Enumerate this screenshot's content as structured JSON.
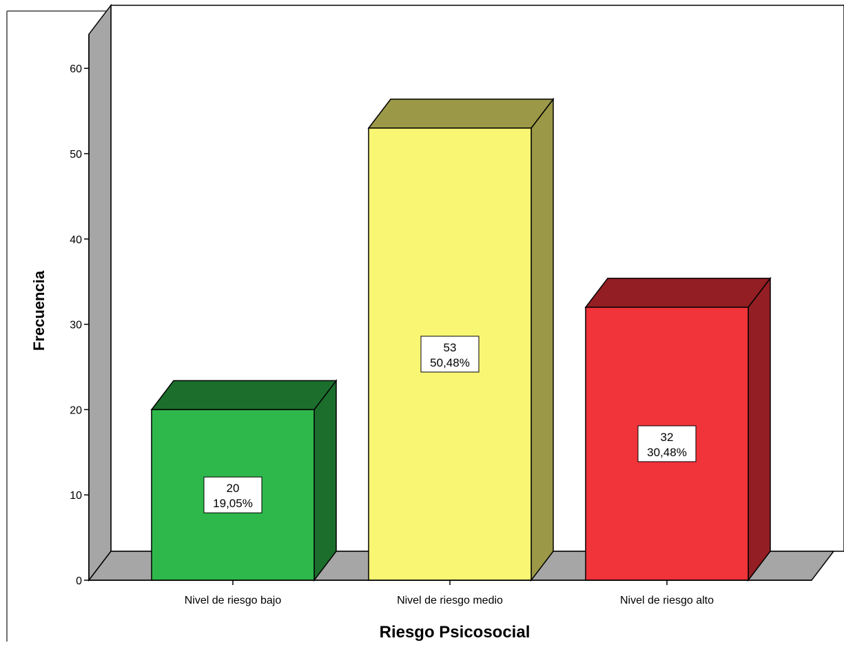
{
  "chart_data": {
    "type": "bar",
    "style": "3d",
    "categories": [
      "Nivel de riesgo bajo",
      "Nivel de riesgo medio",
      "Nivel de riesgo alto"
    ],
    "values": [
      20,
      53,
      32
    ],
    "percent_labels": [
      "19,05%",
      "50,48%",
      "30,48%"
    ],
    "count_labels": [
      "20",
      "53",
      "32"
    ],
    "colors": {
      "front": [
        "#2eb84b",
        "#f9f674",
        "#f1333a"
      ],
      "side": [
        "#1c6e2d",
        "#9b9847",
        "#931e23"
      ],
      "wall": "#a6a6a6",
      "axis": "#000000"
    },
    "xlabel": "Riesgo Psicosocial",
    "ylabel": "Frecuencia",
    "ylim": [
      0,
      64
    ],
    "yticks": [
      0,
      10,
      20,
      30,
      40,
      50,
      60
    ],
    "ytick_labels": [
      "0",
      "10",
      "20",
      "30",
      "40",
      "50",
      "60"
    ],
    "grid": false,
    "legend": "none"
  }
}
